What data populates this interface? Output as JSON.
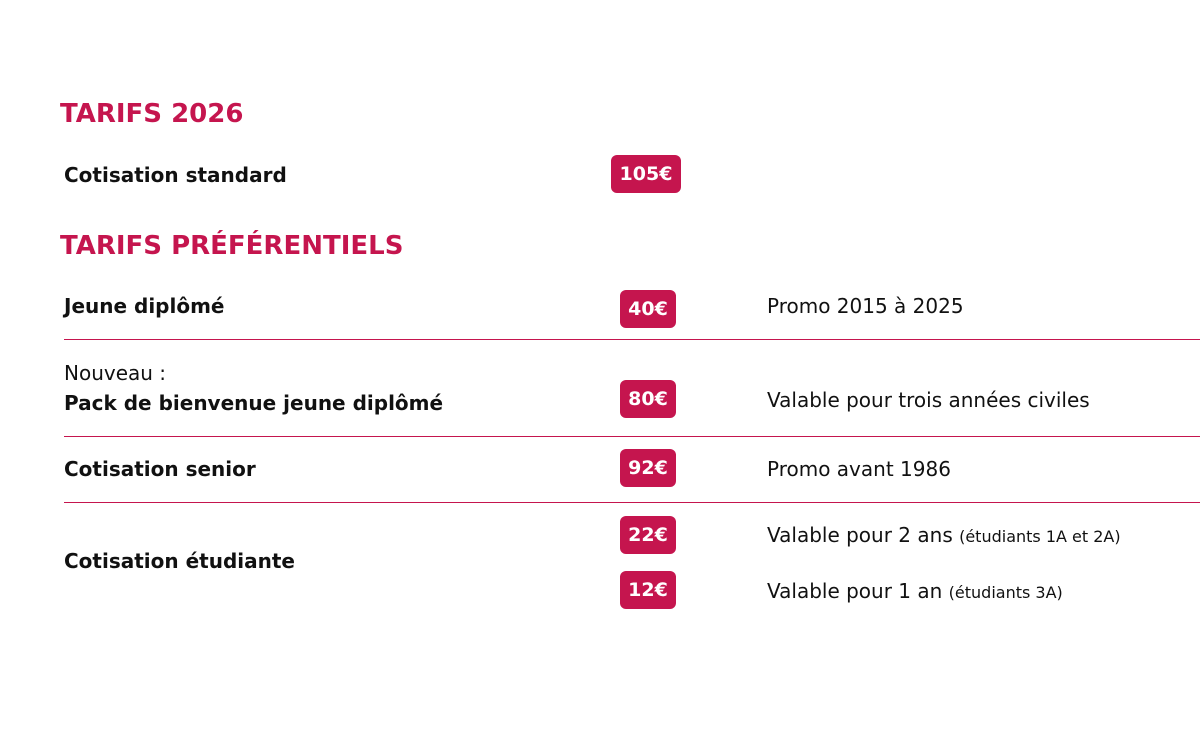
{
  "sections": [
    {
      "title": "TARIFS 2026",
      "rows": [
        {
          "label": "Cotisation standard",
          "price": "105€"
        }
      ]
    },
    {
      "title": "TARIFS PRÉFÉRENTIELS",
      "rows": [
        {
          "label": "Jeune diplômé",
          "price": "40€",
          "note": "Promo 2015 à 2025"
        },
        {
          "prefix": "Nouveau :",
          "label": "Pack de bienvenue jeune diplômé",
          "price": "80€",
          "note": "Valable pour trois années civiles"
        },
        {
          "label": "Cotisation senior",
          "price": "92€",
          "note": "Promo avant 1986"
        },
        {
          "label": "Cotisation étudiante",
          "options": [
            {
              "price": "22€",
              "note": "Valable pour 2 ans",
              "detail": "(étudiants 1A et 2A)"
            },
            {
              "price": "12€",
              "note": "Valable pour 1 an",
              "detail": "(étudiants 3A)"
            }
          ]
        }
      ]
    }
  ]
}
